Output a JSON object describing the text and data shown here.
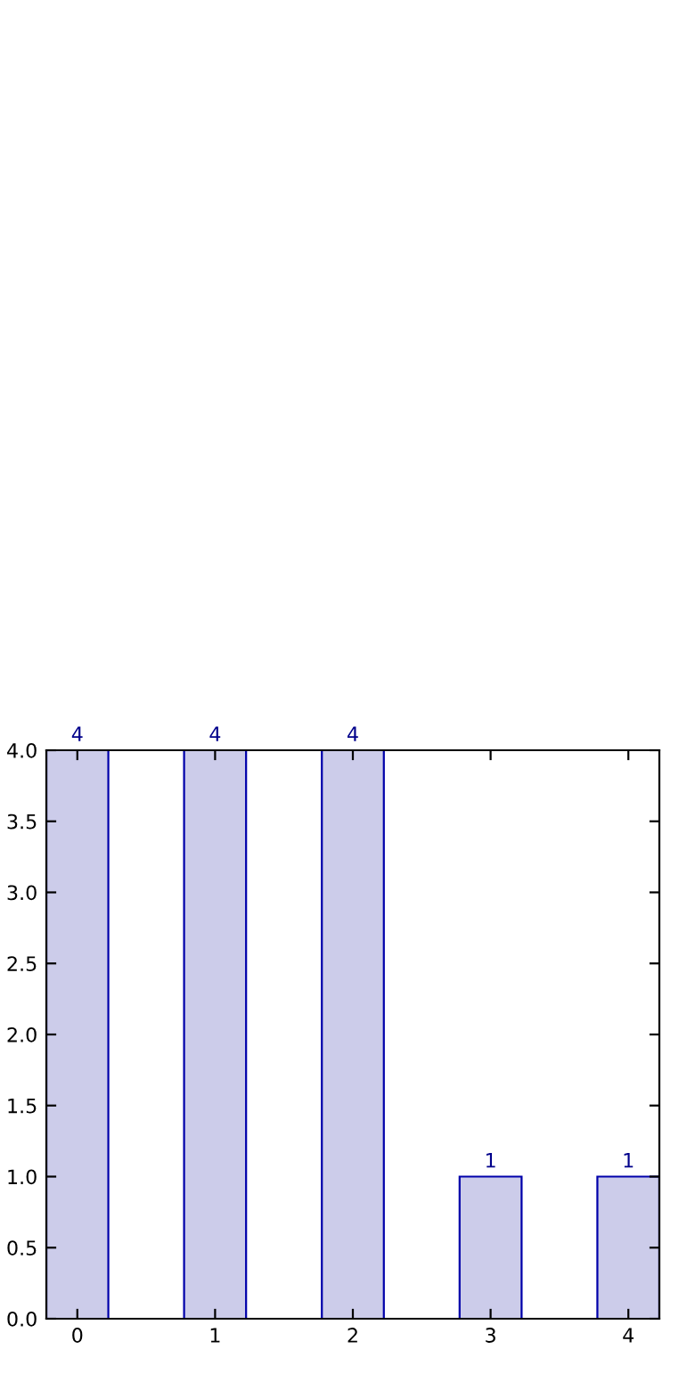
{
  "chart_data": {
    "type": "bar",
    "categories": [
      "0",
      "1",
      "2",
      "3",
      "4"
    ],
    "series": [
      {
        "values": [
          4,
          4,
          4,
          1,
          1
        ],
        "color": "#ccccea"
      }
    ],
    "ylim": [
      0,
      4.0
    ],
    "yticks": [
      {
        "value": 0,
        "label": "0.0"
      },
      {
        "value": 0.5,
        "label": "0.5"
      },
      {
        "value": 1,
        "label": "1.0"
      },
      {
        "value": 1.5,
        "label": "1.5"
      },
      {
        "value": 2,
        "label": "2.0"
      },
      {
        "value": 2.5,
        "label": "2.5"
      },
      {
        "value": 3,
        "label": "3.0"
      },
      {
        "value": 3.5,
        "label": "3.5"
      },
      {
        "value": 4,
        "label": "4.0"
      }
    ],
    "data_labels": true,
    "grid": false,
    "legend": false
  }
}
